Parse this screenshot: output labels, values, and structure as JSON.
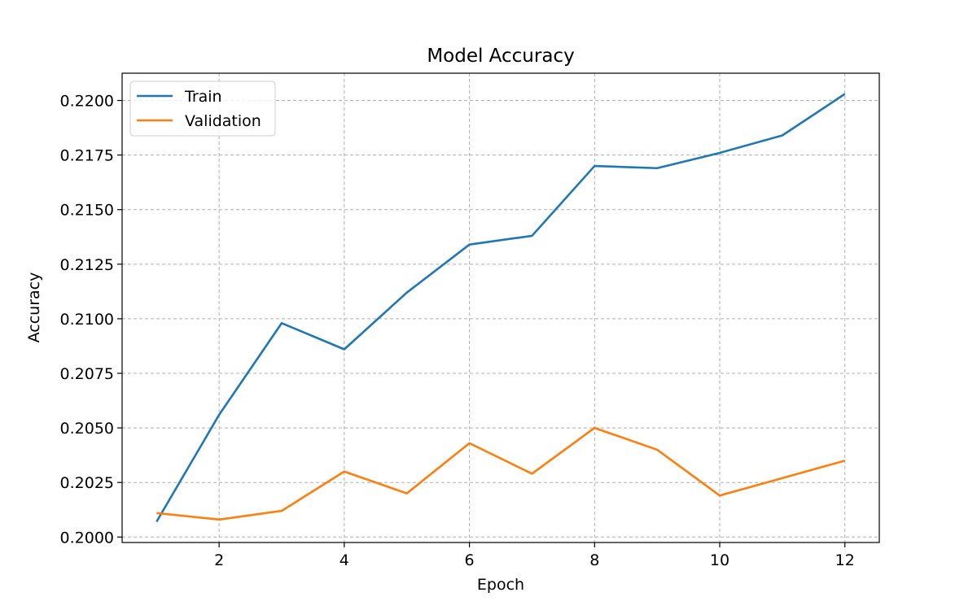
{
  "chart_data": {
    "type": "line",
    "title": "Model Accuracy",
    "xlabel": "Epoch",
    "ylabel": "Accuracy",
    "x": [
      1,
      2,
      3,
      4,
      5,
      6,
      7,
      8,
      9,
      10,
      11,
      12
    ],
    "xlim": [
      0.45,
      12.55
    ],
    "ylim": [
      0.19975,
      0.22125
    ],
    "xticks": [
      2,
      4,
      6,
      8,
      10,
      12
    ],
    "xtick_labels": [
      "2",
      "4",
      "6",
      "8",
      "10",
      "12"
    ],
    "yticks": [
      0.2,
      0.2025,
      0.205,
      0.2075,
      0.21,
      0.2125,
      0.215,
      0.2175,
      0.22
    ],
    "ytick_labels": [
      "0.2000",
      "0.2025",
      "0.2050",
      "0.2075",
      "0.2100",
      "0.2125",
      "0.2150",
      "0.2175",
      "0.2200"
    ],
    "grid": true,
    "legend_position": "top-left",
    "series": [
      {
        "name": "Train",
        "color": "#1f77b4",
        "values": [
          0.2007,
          0.2056,
          0.2098,
          0.2086,
          0.2112,
          0.2134,
          0.2138,
          0.217,
          0.2169,
          0.2176,
          0.2184,
          0.2203
        ]
      },
      {
        "name": "Validation",
        "color": "#ff7f0e",
        "values": [
          0.2011,
          0.2008,
          0.2012,
          0.203,
          0.202,
          0.2043,
          0.2029,
          0.205,
          0.204,
          0.2019,
          0.2027,
          0.2035
        ]
      }
    ]
  }
}
